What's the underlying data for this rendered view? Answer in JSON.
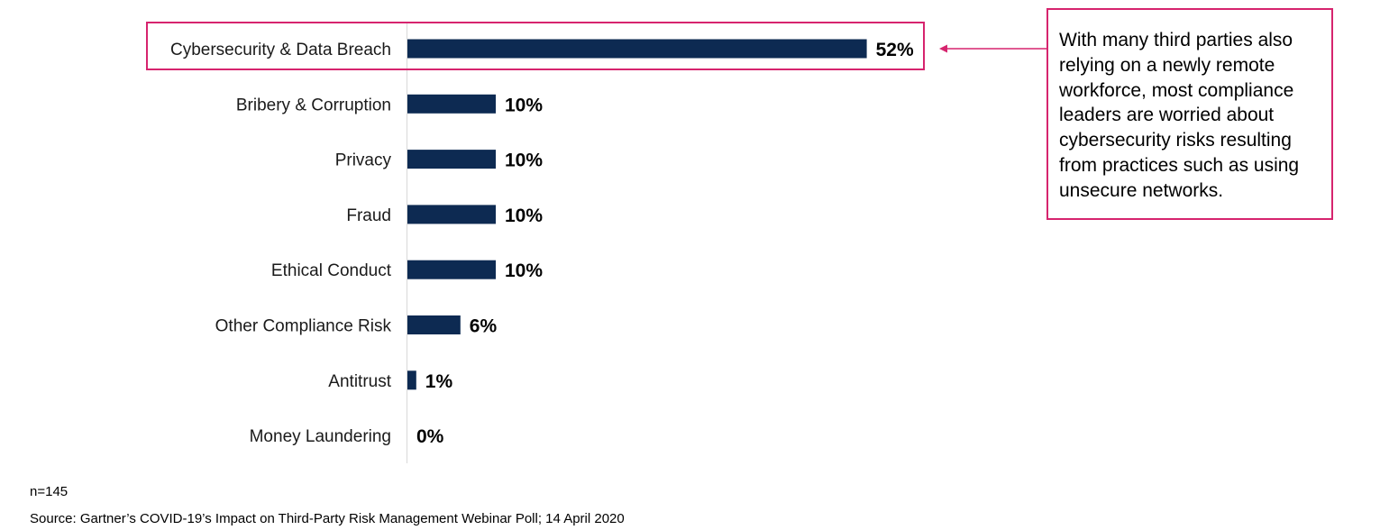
{
  "chart_data": {
    "type": "bar",
    "orientation": "horizontal",
    "categories": [
      "Cybersecurity & Data Breach",
      "Bribery & Corruption",
      "Privacy",
      "Fraud",
      "Ethical Conduct",
      "Other Compliance Risk",
      "Antitrust",
      "Money Laundering"
    ],
    "values": [
      52,
      10,
      10,
      10,
      10,
      6,
      1,
      0
    ],
    "value_labels": [
      "52%",
      "10%",
      "10%",
      "10%",
      "10%",
      "6%",
      "1%",
      "0%"
    ],
    "unit": "%",
    "highlighted_category": "Cybersecurity & Data Breach",
    "bar_color": "#0d2a52",
    "highlight_color": "#d6246e"
  },
  "callout": {
    "text": "With many third parties also relying on a newly remote workforce, most compliance leaders are worried about cybersecurity risks resulting from practices such as using unsecure networks."
  },
  "footer": {
    "sample": "n=145",
    "source": "Source: Gartner’s COVID-19’s Impact on Third-Party Risk Management Webinar Poll; 14 April 2020"
  }
}
